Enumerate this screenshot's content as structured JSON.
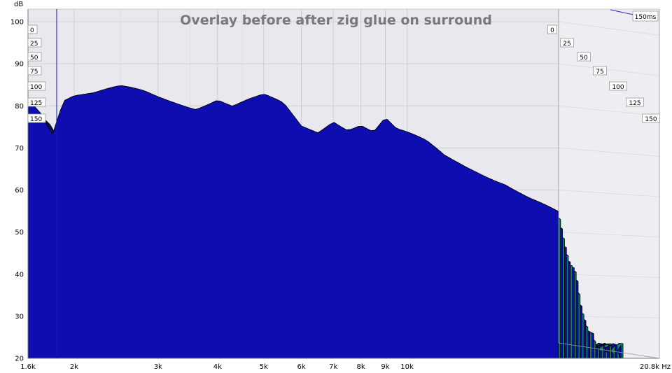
{
  "chart_data": {
    "type": "waterfall",
    "title": "Overlay before after zig glue on surround",
    "ylabel": "dB",
    "xunit": "Hz",
    "ylim": [
      20,
      103
    ],
    "xlim": [
      1600,
      20800
    ],
    "xscale": "log",
    "y_ticks": [
      "100",
      "90",
      "80",
      "70",
      "60",
      "50",
      "40",
      "30",
      "20"
    ],
    "x_ticks": [
      {
        "label": "1.6k",
        "value": 1600
      },
      {
        "label": "2k",
        "value": 2000
      },
      {
        "label": "3k",
        "value": 3000
      },
      {
        "label": "4k",
        "value": 4000
      },
      {
        "label": "5k",
        "value": 5000
      },
      {
        "label": "6k",
        "value": 6000
      },
      {
        "label": "7k",
        "value": 7000
      },
      {
        "label": "8k",
        "value": 8000
      },
      {
        "label": "9k",
        "value": 9000
      },
      {
        "label": "10k",
        "value": 10000
      },
      {
        "label": "20.8k Hz",
        "value": 20800
      }
    ],
    "time_labels": [
      "0",
      "25",
      "50",
      "75",
      "100",
      "125",
      "150"
    ],
    "time_axis_label": "150ms",
    "series": [
      {
        "color": "#0e0eb0"
      },
      {
        "color": "#0f7f76"
      }
    ],
    "first_slice": [
      [
        1600,
        82
      ],
      [
        1700,
        79
      ],
      [
        1800,
        74
      ],
      [
        1900,
        82
      ],
      [
        2000,
        83
      ],
      [
        2200,
        83
      ],
      [
        2500,
        84
      ],
      [
        2800,
        83
      ],
      [
        3000,
        82
      ],
      [
        3300,
        81
      ],
      [
        3600,
        80
      ],
      [
        4000,
        82
      ],
      [
        4300,
        80
      ],
      [
        4600,
        81
      ],
      [
        5000,
        82
      ],
      [
        5500,
        80
      ],
      [
        6000,
        75
      ],
      [
        6500,
        74
      ],
      [
        7000,
        77
      ],
      [
        7500,
        75
      ],
      [
        8000,
        76
      ],
      [
        8500,
        74
      ],
      [
        9000,
        77
      ],
      [
        9500,
        74
      ],
      [
        10000,
        73
      ],
      [
        11000,
        71
      ],
      [
        12000,
        68
      ],
      [
        14000,
        65
      ],
      [
        16000,
        62
      ],
      [
        18000,
        58
      ],
      [
        20800,
        54
      ]
    ]
  }
}
